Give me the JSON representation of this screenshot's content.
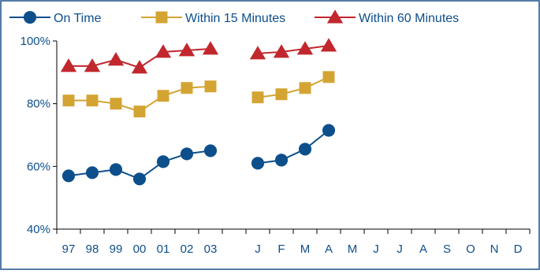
{
  "chart_data": {
    "type": "line",
    "title": "",
    "xlabel": "",
    "ylabel": "",
    "ylim": [
      40,
      100
    ],
    "yticks": [
      {
        "value": 40,
        "label": "40%"
      },
      {
        "value": 60,
        "label": "60%"
      },
      {
        "value": 80,
        "label": "80%"
      },
      {
        "value": 100,
        "label": "100%"
      }
    ],
    "categories": [
      "97",
      "98",
      "99",
      "00",
      "01",
      "02",
      "03",
      "",
      "J",
      "F",
      "M",
      "A",
      "M",
      "J",
      "J",
      "A",
      "S",
      "O",
      "N",
      "D"
    ],
    "grid": false,
    "legend_position": "top",
    "series": [
      {
        "name": "On Time",
        "color": "#0d4f8b",
        "marker": "circle",
        "values": [
          57,
          58,
          59,
          56,
          61.5,
          64,
          65,
          null,
          61,
          62,
          65.5,
          71.5,
          null,
          null,
          null,
          null,
          null,
          null,
          null,
          null
        ]
      },
      {
        "name": "Within 15 Minutes",
        "color": "#d4a433",
        "marker": "square",
        "values": [
          81,
          81,
          80,
          77.5,
          82.5,
          85,
          85.5,
          null,
          82,
          83,
          85,
          88.5,
          null,
          null,
          null,
          null,
          null,
          null,
          null,
          null
        ]
      },
      {
        "name": "Within 60 Minutes",
        "color": "#c1272d",
        "marker": "triangle",
        "values": [
          92,
          92,
          94,
          91.5,
          96.5,
          97,
          97.5,
          null,
          96,
          96.5,
          97.5,
          98.5,
          null,
          null,
          null,
          null,
          null,
          null,
          null,
          null
        ]
      }
    ]
  },
  "colors": {
    "axis": "#000000",
    "text": "#0d4f8b",
    "frame": "#1d4f8b"
  }
}
